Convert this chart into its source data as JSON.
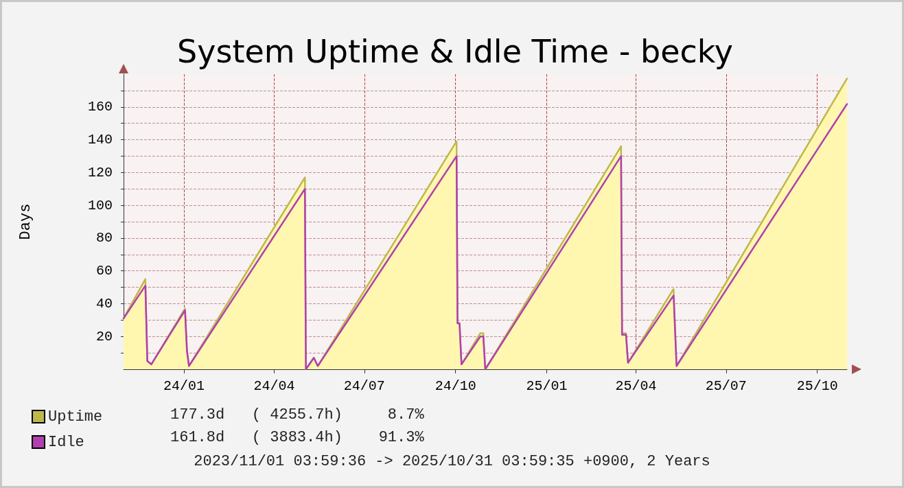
{
  "chart_data": {
    "type": "line",
    "title": "System Uptime & Idle Time - becky",
    "ylabel": "Days",
    "x": [
      "2023-11-01",
      "2023-11-23",
      "2023-11-25",
      "2023-11-29",
      "2024-01-02",
      "2024-01-04",
      "2024-01-06",
      "2024-05-02",
      "2024-05-03",
      "2024-05-11",
      "2024-05-15",
      "2024-10-02",
      "2024-10-03",
      "2024-10-05",
      "2024-10-07",
      "2024-10-26",
      "2024-10-29",
      "2024-10-31",
      "2025-03-17",
      "2025-03-18",
      "2025-03-22",
      "2025-03-24",
      "2025-05-09",
      "2025-05-12",
      "2025-10-31"
    ],
    "series": [
      {
        "name": "Uptime",
        "type": "area",
        "color": "#bdb84c",
        "values": [
          31,
          55,
          5,
          3,
          37,
          12,
          2,
          117,
          0,
          7,
          2,
          139,
          28,
          28,
          3,
          22,
          22,
          0,
          136,
          22,
          22,
          4,
          49,
          2,
          177.3
        ]
      },
      {
        "name": "Idle",
        "type": "line",
        "color": "#b040b0",
        "values": [
          31,
          51,
          5,
          3,
          36,
          11,
          2,
          110,
          0,
          7,
          2,
          130,
          28,
          28,
          3,
          20,
          20,
          0,
          130,
          21,
          21,
          4,
          45,
          2,
          161.8
        ]
      }
    ],
    "xlim": [
      "2023-11-01",
      "2025-10-31"
    ],
    "xticks": [
      {
        "value": "2024-01-01",
        "label": "24/01"
      },
      {
        "value": "2024-04-01",
        "label": "24/04"
      },
      {
        "value": "2024-07-01",
        "label": "24/07"
      },
      {
        "value": "2024-10-01",
        "label": "24/10"
      },
      {
        "value": "2025-01-01",
        "label": "25/01"
      },
      {
        "value": "2025-04-01",
        "label": "25/04"
      },
      {
        "value": "2025-07-01",
        "label": "25/07"
      },
      {
        "value": "2025-10-01",
        "label": "25/10"
      }
    ],
    "ylim": [
      0,
      180
    ],
    "yticks": [
      {
        "value": 10,
        "label": null
      },
      20,
      {
        "value": 30,
        "label": null
      },
      40,
      {
        "value": 50,
        "label": null
      },
      60,
      {
        "value": 70,
        "label": null
      },
      80,
      {
        "value": 90,
        "label": null
      },
      100,
      {
        "value": 110,
        "label": null
      },
      120,
      {
        "value": 130,
        "label": null
      },
      140,
      {
        "value": 150,
        "label": null
      },
      160,
      {
        "value": 170,
        "label": null
      }
    ],
    "grid": true,
    "legend": "bottom left",
    "marker": "none",
    "line_style": "solid",
    "annotations": [
      "177.3d   ( 4255.7h)     8.7%",
      "161.8d   ( 3883.4h)    91.3%",
      "2023/11/01 03:59:36 -> 2025/10/31 03:59:35 +0900, 2 Years"
    ]
  }
}
